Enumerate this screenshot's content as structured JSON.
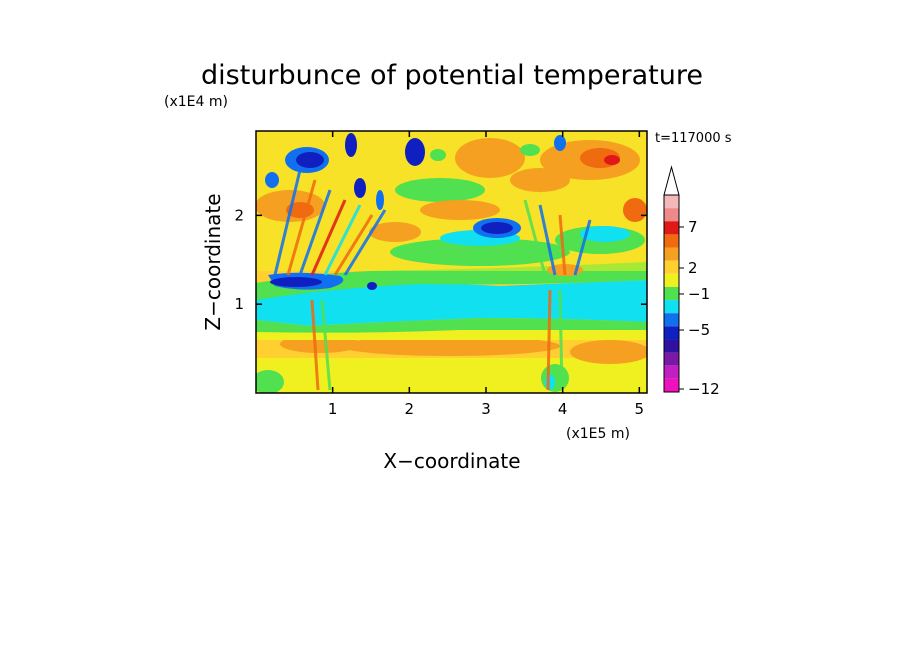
{
  "chart_data": {
    "type": "heatmap",
    "title": "disturbunce of potential temperature",
    "xlabel": "X−coordinate",
    "ylabel": "Z−coordinate",
    "x_unit": "(x1E5 m)",
    "y_unit": "(x1E4 m)",
    "time_label": "t=117000 s",
    "xlim": [
      0,
      5.1
    ],
    "ylim": [
      0,
      2.95
    ],
    "x_ticks": [
      "1",
      "2",
      "3",
      "4",
      "5"
    ],
    "y_ticks": [
      "1",
      "2"
    ],
    "colorbar_labels": [
      "7",
      "2",
      "−1",
      "−5",
      "−12"
    ],
    "colorbar_colors": [
      "#f5b8b8",
      "#f08a8a",
      "#e01818",
      "#f06a10",
      "#f5a020",
      "#ffd030",
      "#f0f020",
      "#50e050",
      "#10e0f0",
      "#1070f0",
      "#1020c0",
      "#3010a0",
      "#7a18a8",
      "#c020c0",
      "#f010c0"
    ],
    "levels_colors": {
      "neg_strong": "#1020c0",
      "neg_mid": "#1070f0",
      "neg_weak": "#10e0f0",
      "near_zero": "#50e050",
      "pos_weak": "#f0f020",
      "pos_mid": "#ffd030",
      "pos_warm": "#f5a020",
      "pos_hot": "#f06a10",
      "pos_max": "#e01818"
    }
  }
}
